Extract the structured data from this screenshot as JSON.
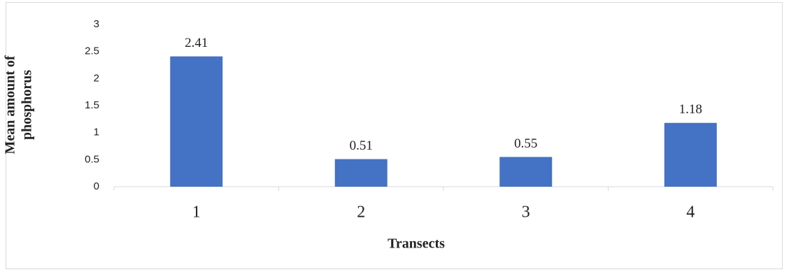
{
  "chart_data": {
    "type": "bar",
    "xlabel": "Transects",
    "ylabel": [
      "Mean amount of",
      "phosphorus"
    ],
    "categories": [
      "1",
      "2",
      "3",
      "4"
    ],
    "values": [
      2.41,
      0.51,
      0.55,
      1.18
    ],
    "color": "#4472c4",
    "ylim": [
      0,
      3
    ],
    "yticks": [
      0,
      0.5,
      1,
      1.5,
      2,
      2.5,
      3
    ],
    "grid": false
  }
}
